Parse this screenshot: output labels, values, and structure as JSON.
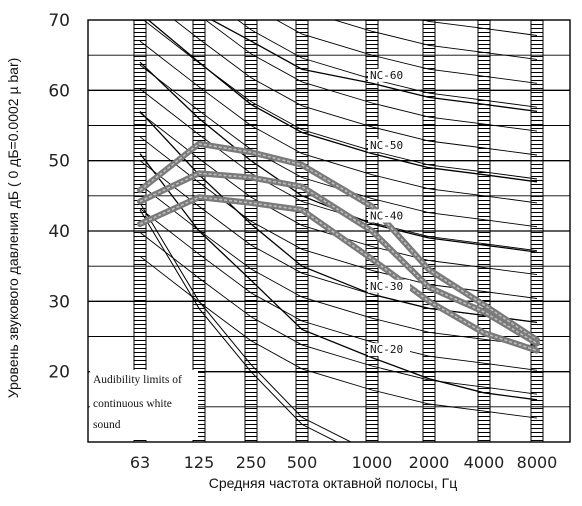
{
  "chart_data": {
    "type": "line",
    "title": "",
    "xlabel": "Средняя частота октавной полосы, Гц",
    "ylabel": "Уровень звукового давления дБ ( 0 дБ=0.0002 µ bar)",
    "categories": [
      "63",
      "125",
      "250",
      "500",
      "1000",
      "2000",
      "4000",
      "8000"
    ],
    "yticks": [
      20,
      30,
      40,
      50,
      60,
      70
    ],
    "ylim": [
      10,
      70
    ],
    "grid": true,
    "nc_curves": [
      {
        "label": "NC-20",
        "values": [
          51,
          40,
          33,
          26,
          22,
          19,
          17,
          16
        ]
      },
      {
        "label": "NC-30",
        "values": [
          57,
          48,
          41,
          35,
          31,
          29,
          28,
          27
        ]
      },
      {
        "label": "NC-40",
        "values": [
          64,
          56,
          50,
          45,
          41,
          39,
          38,
          37
        ]
      },
      {
        "label": "NC-50",
        "values": [
          71,
          64,
          58,
          54,
          51,
          49,
          48,
          47
        ]
      },
      {
        "label": "NC-60",
        "values": [
          77,
          71,
          67,
          63,
          61,
          59,
          58,
          57
        ]
      }
    ],
    "series": [
      {
        "values": [
          45.8,
          52.4,
          51.2,
          49.4,
          43.5,
          34.5,
          29.5,
          24.5
        ]
      },
      {
        "values": [
          44.2,
          48.2,
          47.6,
          46.3,
          40.0,
          32.0,
          28.5,
          24.0
        ]
      },
      {
        "values": [
          41.0,
          44.8,
          44.0,
          43.0,
          36.0,
          30.0,
          25.5,
          23.0
        ]
      }
    ],
    "annotation": {
      "lines": [
        "Audibility limits of",
        "continuous white",
        "sound"
      ],
      "curves": [
        {
          "values": [
            43,
            29,
            20,
            12.5,
            7.5
          ]
        },
        {
          "values": [
            44,
            30,
            21,
            13.5,
            8.5
          ]
        }
      ]
    },
    "colors": {
      "series": "#7a7a7a",
      "series_dash": "#bdbdbd",
      "grid": "#000000",
      "curves": "#000000"
    }
  }
}
